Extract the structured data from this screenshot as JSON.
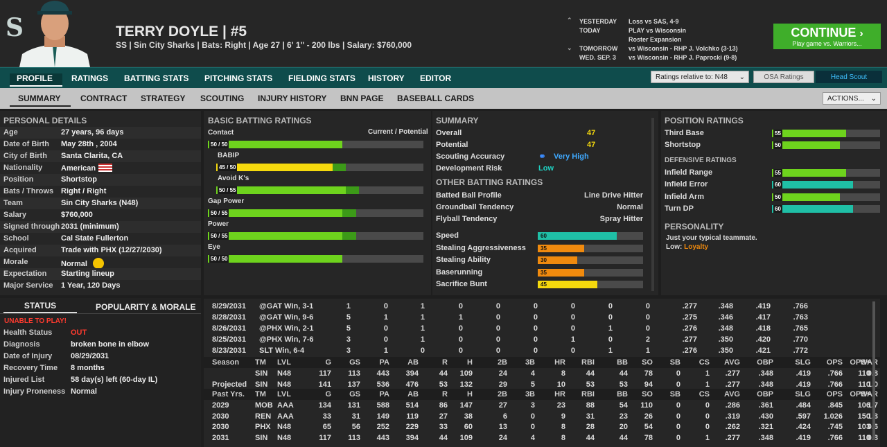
{
  "player": {
    "name": "TERRY DOYLE  |  #5",
    "info": "SS | Sin City Sharks  |  Bats: Right  |  Age 27  |  6' 1\" - 200 lbs  |  Salary: $760,000"
  },
  "schedule": [
    {
      "label": "YESTERDAY",
      "value": "Loss vs SAS, 4-9"
    },
    {
      "label": "TODAY",
      "value": "PLAY vs Wisconsin"
    },
    {
      "label": "",
      "value": "Roster Expansion"
    },
    {
      "label": "TOMORROW",
      "value": "vs Wisconsin - RHP J. Volchko (3-13)"
    },
    {
      "label": "WED. SEP. 3",
      "value": "vs Wisconsin - RHP J. Paprocki (9-8)"
    }
  ],
  "continue": {
    "title": "CONTINUE",
    "sub": "Play game vs. Warriors..."
  },
  "tabs1": [
    "PROFILE",
    "RATINGS",
    "BATTING STATS",
    "PITCHING STATS",
    "FIELDING STATS",
    "HISTORY",
    "EDITOR"
  ],
  "ratings_rel": "Ratings relative to: N48",
  "osa": "OSA Ratings",
  "headscout": "Head Scout",
  "tabs2": [
    "SUMMARY",
    "CONTRACT",
    "STRATEGY",
    "SCOUTING",
    "INJURY HISTORY",
    "BNN PAGE",
    "BASEBALL CARDS"
  ],
  "actions": "ACTIONS...",
  "personal": {
    "title": "PERSONAL DETAILS",
    "rows": [
      [
        "Age",
        "27 years, 96 days"
      ],
      [
        "Date of Birth",
        "May 28th , 2004"
      ],
      [
        "City of Birth",
        "Santa Clarita, CA"
      ],
      [
        "Nationality",
        "American"
      ],
      [
        "Position",
        "Shortstop"
      ],
      [
        "Bats / Throws",
        "Right / Right"
      ],
      [
        "Team",
        "Sin City Sharks (N48)"
      ],
      [
        "Salary",
        "$760,000"
      ],
      [
        "Signed through",
        "2031 (minimum)"
      ],
      [
        "School",
        "Cal State Fullerton"
      ],
      [
        "Acquired",
        "Trade with PHX (12/27/2030)"
      ],
      [
        "Morale",
        "Normal"
      ],
      [
        "Expectation",
        "Starting lineup"
      ],
      [
        "Major Service",
        "1 Year, 120 Days"
      ]
    ]
  },
  "status_tabs": [
    "STATUS",
    "POPULARITY & MORALE"
  ],
  "unable": "UNABLE TO PLAY!",
  "status": [
    [
      "Health Status",
      "OUT"
    ],
    [
      "Diagnosis",
      "broken bone in elbow"
    ],
    [
      "Date of Injury",
      "08/29/2031"
    ],
    [
      "Recovery Time",
      "8 months"
    ],
    [
      "Injured List",
      "58 day(s) left (60-day IL)"
    ],
    [
      "Injury Proneness",
      "Normal"
    ]
  ],
  "batting": {
    "title": "BASIC BATTING RATINGS",
    "cp": "Current / Potential",
    "items": [
      {
        "name": "Contact",
        "label": "50 / 50",
        "cur": 50,
        "pot": 50,
        "color": "#6ed31d",
        "indent": false
      },
      {
        "name": "BABIP",
        "label": "45 / 50",
        "cur": 45,
        "pot": 50,
        "color": "#f5d90d",
        "indent": true
      },
      {
        "name": "Avoid K's",
        "label": "50 / 55",
        "cur": 50,
        "pot": 55,
        "color": "#6ed31d",
        "indent": true
      },
      {
        "name": "Gap Power",
        "label": "50 / 55",
        "cur": 50,
        "pot": 55,
        "color": "#6ed31d",
        "indent": false
      },
      {
        "name": "Power",
        "label": "50 / 55",
        "cur": 50,
        "pot": 55,
        "color": "#6ed31d",
        "indent": false
      },
      {
        "name": "Eye",
        "label": "50 / 50",
        "cur": 50,
        "pot": 50,
        "color": "#6ed31d",
        "indent": false
      }
    ]
  },
  "summary": {
    "title": "SUMMARY",
    "rows": [
      [
        "Overall",
        "47"
      ],
      [
        "Potential",
        "47"
      ],
      [
        "Scouting Accuracy",
        "Very High"
      ],
      [
        "Development Risk",
        "Low"
      ]
    ]
  },
  "other": {
    "title": "OTHER BATTING RATINGS",
    "rows": [
      [
        "Batted Ball Profile",
        "Line Drive Hitter"
      ],
      [
        "Groundball Tendency",
        "Normal"
      ],
      [
        "Flyball Tendency",
        "Spray Hitter"
      ]
    ],
    "bars": [
      {
        "name": "Speed",
        "value": 60,
        "color": "#1fbfa6"
      },
      {
        "name": "Stealing Aggressiveness",
        "value": 35,
        "color": "#f08a0e"
      },
      {
        "name": "Stealing Ability",
        "value": 30,
        "color": "#f08a0e"
      },
      {
        "name": "Baserunning",
        "value": 35,
        "color": "#f08a0e"
      },
      {
        "name": "Sacrifice Bunt",
        "value": 45,
        "color": "#f5d90d"
      }
    ]
  },
  "position": {
    "title": "POSITION RATINGS",
    "items": [
      {
        "name": "Third Base",
        "value": 55,
        "color": "#6ed31d"
      },
      {
        "name": "Shortstop",
        "value": 50,
        "color": "#6ed31d"
      }
    ]
  },
  "defensive": {
    "title": "DEFENSIVE RATINGS",
    "items": [
      {
        "name": "Infield Range",
        "value": 55,
        "color": "#6ed31d"
      },
      {
        "name": "Infield Error",
        "value": 60,
        "color": "#1fbfa6"
      },
      {
        "name": "Infield Arm",
        "value": 50,
        "color": "#6ed31d"
      },
      {
        "name": "Turn DP",
        "value": 60,
        "color": "#1fbfa6"
      }
    ]
  },
  "personality": {
    "title": "PERSONALITY",
    "text": "Just your typical teammate.",
    "low": "Low:",
    "trait": "Loyalty"
  },
  "games": [
    [
      "8/29/2031",
      "@GAT Win, 3-1",
      "1",
      "0",
      "1",
      "0",
      "0",
      "0",
      "0",
      "0",
      "0",
      ".277",
      ".348",
      ".419",
      ".766"
    ],
    [
      "8/28/2031",
      "@GAT Win, 9-6",
      "5",
      "1",
      "1",
      "1",
      "0",
      "0",
      "0",
      "0",
      "0",
      ".275",
      ".346",
      ".417",
      ".763"
    ],
    [
      "8/26/2031",
      "@PHX Win, 2-1",
      "5",
      "0",
      "1",
      "0",
      "0",
      "0",
      "0",
      "1",
      "0",
      ".276",
      ".348",
      ".418",
      ".765"
    ],
    [
      "8/25/2031",
      "@PHX Win, 7-6",
      "3",
      "0",
      "1",
      "0",
      "0",
      "0",
      "1",
      "0",
      "2",
      ".277",
      ".350",
      ".420",
      ".770"
    ],
    [
      "8/23/2031",
      "SLT  Win, 6-4",
      "3",
      "1",
      "0",
      "0",
      "0",
      "0",
      "0",
      "1",
      "1",
      ".276",
      ".350",
      ".421",
      ".772"
    ]
  ],
  "season_hdr": [
    "Season",
    "TM",
    "LVL",
    "G",
    "GS",
    "PA",
    "AB",
    "R",
    "H",
    "2B",
    "3B",
    "HR",
    "RBI",
    "BB",
    "SO",
    "SB",
    "CS",
    "AVG",
    "OBP",
    "SLG",
    "OPS",
    "OPS+",
    "WAR"
  ],
  "season_rows": [
    [
      "",
      "SIN",
      "N48",
      "117",
      "113",
      "443",
      "394",
      "44",
      "109",
      "24",
      "4",
      "8",
      "44",
      "44",
      "78",
      "0",
      "1",
      ".277",
      ".348",
      ".419",
      ".766",
      "110",
      "0.8"
    ],
    [
      "Projected",
      "SIN",
      "N48",
      "141",
      "137",
      "536",
      "476",
      "53",
      "132",
      "29",
      "5",
      "10",
      "53",
      "53",
      "94",
      "0",
      "1",
      ".277",
      ".348",
      ".419",
      ".766",
      "110",
      "1.0"
    ]
  ],
  "past_hdr": [
    "Past Yrs.",
    "TM",
    "LVL",
    "G",
    "GS",
    "PA",
    "AB",
    "R",
    "H",
    "2B",
    "3B",
    "HR",
    "RBI",
    "BB",
    "SO",
    "SB",
    "CS",
    "AVG",
    "OBP",
    "SLG",
    "OPS",
    "OPS+",
    "WAR"
  ],
  "past_rows": [
    [
      "2029",
      "MOB",
      "AAA",
      "134",
      "131",
      "588",
      "514",
      "86",
      "147",
      "27",
      "3",
      "23",
      "88",
      "54",
      "110",
      "0",
      "0",
      ".286",
      ".361",
      ".484",
      ".845",
      "106",
      "1.7"
    ],
    [
      "2030",
      "REN",
      "AAA",
      "33",
      "31",
      "149",
      "119",
      "27",
      "38",
      "6",
      "0",
      "9",
      "31",
      "23",
      "26",
      "0",
      "0",
      ".319",
      ".430",
      ".597",
      "1.026",
      "150",
      "1.3"
    ],
    [
      "2030",
      "PHX",
      "N48",
      "65",
      "56",
      "252",
      "229",
      "33",
      "60",
      "13",
      "0",
      "8",
      "28",
      "20",
      "54",
      "0",
      "0",
      ".262",
      ".321",
      ".424",
      ".745",
      "103",
      "0.6"
    ],
    [
      "2031",
      "SIN",
      "N48",
      "117",
      "113",
      "443",
      "394",
      "44",
      "109",
      "24",
      "4",
      "8",
      "44",
      "44",
      "78",
      "0",
      "1",
      ".277",
      ".348",
      ".419",
      ".766",
      "110",
      "0.8"
    ]
  ]
}
